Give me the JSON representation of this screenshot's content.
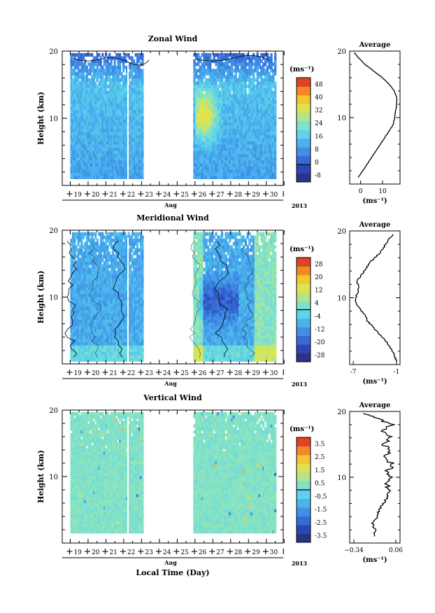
{
  "chart_data": [
    {
      "type": "heatmap",
      "title": "Zonal Wind",
      "ylabel": "Height (km)",
      "xlabel": "Aug",
      "year": "2013",
      "unit": "(ms⁻¹)",
      "ylim": [
        0,
        20
      ],
      "y_ticks": [
        {
          "v": 10,
          "label": "10"
        },
        {
          "v": 20,
          "label": "20"
        }
      ],
      "x_days": [
        "19",
        "20",
        "21",
        "22",
        "23",
        "24",
        "25",
        "26",
        "27",
        "28",
        "29",
        "30"
      ],
      "gap_days": [
        23.1,
        25.9
      ],
      "colorbar": {
        "ticks": [
          "-8",
          "0",
          "8",
          "16",
          "24",
          "32",
          "40",
          "48"
        ],
        "zero_label": "0"
      },
      "average": {
        "title": "Average",
        "xlabel": "(ms⁻¹)",
        "x_ticks": [
          {
            "v": 0,
            "label": "0"
          },
          {
            "v": 10,
            "label": "10"
          }
        ],
        "xlim": [
          -5,
          18
        ],
        "profile": [
          [
            -1,
            1
          ],
          [
            1,
            2
          ],
          [
            3,
            3
          ],
          [
            5,
            4
          ],
          [
            7,
            5
          ],
          [
            9,
            6
          ],
          [
            11,
            7
          ],
          [
            13,
            8
          ],
          [
            15,
            9
          ],
          [
            15.5,
            10
          ],
          [
            16,
            11
          ],
          [
            16.5,
            12
          ],
          [
            16.5,
            13
          ],
          [
            15.5,
            14
          ],
          [
            13,
            15
          ],
          [
            10,
            16
          ],
          [
            6,
            17
          ],
          [
            2,
            18
          ],
          [
            -1,
            19
          ],
          [
            -3,
            19.8
          ]
        ]
      }
    },
    {
      "type": "heatmap",
      "title": "Meridional Wind",
      "ylabel": "Height (km)",
      "xlabel": "Aug",
      "year": "2013",
      "unit": "(ms⁻¹)",
      "ylim": [
        0,
        20
      ],
      "y_ticks": [
        {
          "v": 10,
          "label": "10"
        },
        {
          "v": 20,
          "label": "20"
        }
      ],
      "x_days": [
        "19",
        "20",
        "21",
        "22",
        "23",
        "24",
        "25",
        "26",
        "27",
        "28",
        "29",
        "30"
      ],
      "gap_days": [
        23.1,
        25.9
      ],
      "colorbar": {
        "ticks": [
          "-28",
          "-20",
          "-12",
          "-4",
          "4",
          "12",
          "20",
          "28"
        ],
        "zero_label": ""
      },
      "average": {
        "title": "Average",
        "xlabel": "(ms⁻¹)",
        "x_ticks": [
          {
            "v": -7,
            "label": "-7"
          },
          {
            "v": -1,
            "label": "-1"
          }
        ],
        "xlim": [
          -7.5,
          -0.5
        ],
        "profile": [
          [
            -1,
            0.5
          ],
          [
            -1.3,
            1.5
          ],
          [
            -1.8,
            2.5
          ],
          [
            -2.5,
            3.5
          ],
          [
            -3.3,
            4.5
          ],
          [
            -4.2,
            5.5
          ],
          [
            -5.0,
            6.5
          ],
          [
            -5.5,
            7.5
          ],
          [
            -6.2,
            8.5
          ],
          [
            -6.8,
            9.5
          ],
          [
            -6.5,
            10.5
          ],
          [
            -6.2,
            11.5
          ],
          [
            -6.5,
            12.5
          ],
          [
            -5.8,
            13.5
          ],
          [
            -5.2,
            14.5
          ],
          [
            -4.5,
            15.5
          ],
          [
            -3.5,
            16.5
          ],
          [
            -2.8,
            17.5
          ],
          [
            -2.2,
            18.5
          ],
          [
            -1.5,
            19.5
          ]
        ]
      }
    },
    {
      "type": "heatmap",
      "title": "Vertical Wind",
      "ylabel": "Height (km)",
      "xlabel": "Aug",
      "year": "2013",
      "x_title": "Local Time (Day)",
      "unit": "(ms⁻¹)",
      "ylim": [
        0,
        20
      ],
      "y_ticks": [
        {
          "v": 10,
          "label": "10"
        },
        {
          "v": 20,
          "label": "20"
        }
      ],
      "x_days": [
        "19",
        "20",
        "21",
        "22",
        "23",
        "24",
        "25",
        "26",
        "27",
        "28",
        "29",
        "30"
      ],
      "gap_days": [
        23.1,
        25.9
      ],
      "colorbar": {
        "ticks": [
          "-3.5",
          "-2.5",
          "-1.5",
          "-0.5",
          "0.5",
          "1.5",
          "2.5",
          "3.5"
        ],
        "zero_label": ""
      },
      "average": {
        "title": "Average",
        "xlabel": "(ms⁻¹)",
        "x_ticks": [
          {
            "v": -0.34,
            "label": "−0.34"
          },
          {
            "v": 0.06,
            "label": "0.06"
          }
        ],
        "xlim": [
          -0.38,
          0.1
        ],
        "profile": [
          [
            -0.15,
            1
          ],
          [
            -0.14,
            2
          ],
          [
            -0.16,
            3
          ],
          [
            -0.12,
            4
          ],
          [
            -0.1,
            5
          ],
          [
            -0.06,
            6
          ],
          [
            -0.02,
            7
          ],
          [
            0.0,
            8
          ],
          [
            -0.03,
            9
          ],
          [
            0.0,
            10
          ],
          [
            -0.02,
            11
          ],
          [
            0.03,
            12
          ],
          [
            -0.04,
            13
          ],
          [
            0.01,
            14
          ],
          [
            -0.05,
            15
          ],
          [
            0.02,
            16
          ],
          [
            -0.08,
            17
          ],
          [
            0.02,
            18
          ],
          [
            -0.12,
            19
          ],
          [
            -0.25,
            19.7
          ]
        ]
      }
    }
  ]
}
